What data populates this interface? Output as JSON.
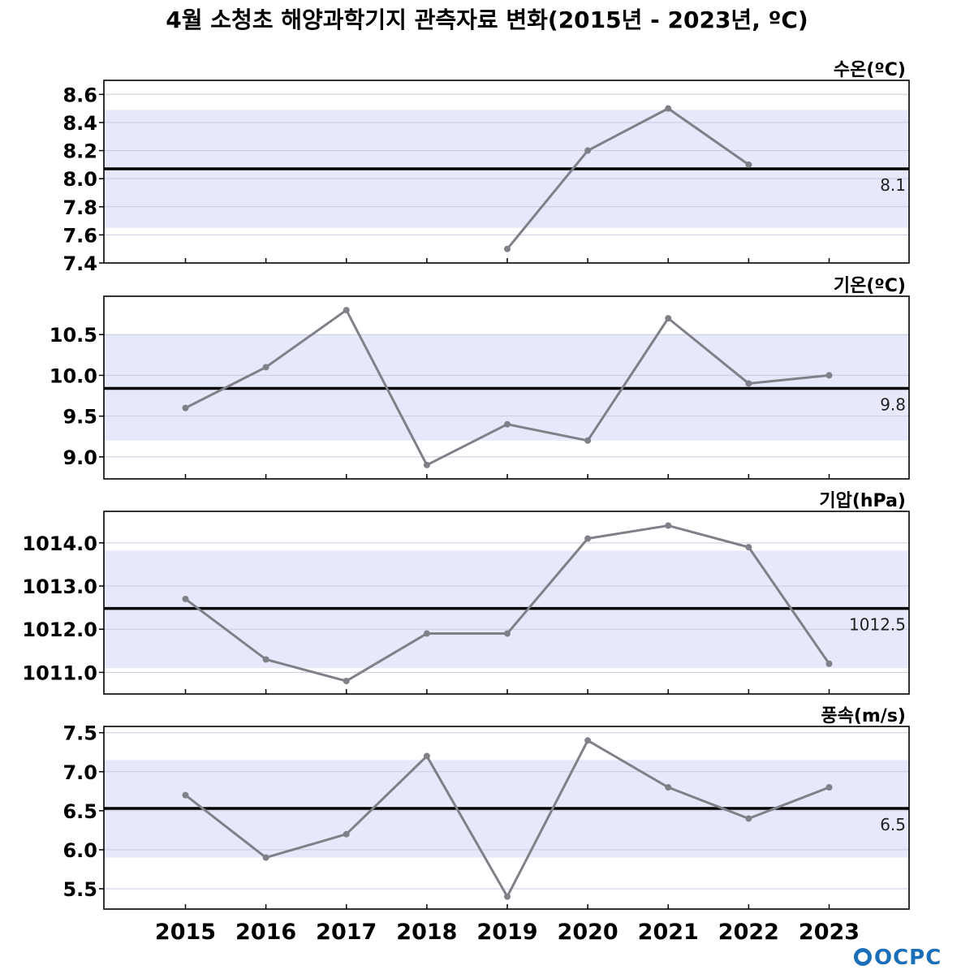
{
  "page": {
    "title": "4월 소청초 해양과학기지 관측자료 변화(2015년 - 2023년, ºC)",
    "logo_text": "OCPC"
  },
  "colors": {
    "band": "#e6e9fb",
    "grid": "#c8cbdc",
    "series_line": "#808088",
    "mean_line": "#000000",
    "frame": "#000000",
    "logo": "#1a6fb8"
  },
  "chart_data": [
    {
      "type": "line",
      "label": "수온(ºC)",
      "x": [
        "2015",
        "2016",
        "2017",
        "2018",
        "2019",
        "2020",
        "2021",
        "2022",
        "2023"
      ],
      "values": [
        null,
        null,
        null,
        null,
        7.5,
        8.2,
        8.5,
        8.1,
        null
      ],
      "mean": 8.07,
      "mean_label": "8.1",
      "band": [
        7.65,
        8.49
      ],
      "ylim": [
        7.4,
        8.7
      ],
      "yticks": [
        7.4,
        7.6,
        7.8,
        8.0,
        8.2,
        8.4,
        8.6
      ],
      "ytick_labels": [
        "7.4",
        "7.6",
        "7.8",
        "8.0",
        "8.2",
        "8.4",
        "8.6"
      ],
      "show_xticks": false
    },
    {
      "type": "line",
      "label": "기온(ºC)",
      "x": [
        "2015",
        "2016",
        "2017",
        "2018",
        "2019",
        "2020",
        "2021",
        "2022",
        "2023"
      ],
      "values": [
        9.6,
        10.1,
        10.8,
        8.9,
        9.4,
        9.2,
        10.7,
        9.9,
        10.0
      ],
      "mean": 9.84,
      "mean_label": "9.8",
      "band": [
        9.2,
        10.5
      ],
      "ylim": [
        8.73,
        10.97
      ],
      "yticks": [
        9.0,
        9.5,
        10.0,
        10.5
      ],
      "ytick_labels": [
        "9.0",
        "9.5",
        "10.0",
        "10.5"
      ],
      "show_xticks": false
    },
    {
      "type": "line",
      "label": "기압(hPa)",
      "x": [
        "2015",
        "2016",
        "2017",
        "2018",
        "2019",
        "2020",
        "2021",
        "2022",
        "2023"
      ],
      "values": [
        1012.7,
        1011.3,
        1010.8,
        1011.9,
        1011.9,
        1014.1,
        1014.4,
        1013.9,
        1011.2
      ],
      "mean": 1012.48,
      "mean_label": "1012.5",
      "band": [
        1011.1,
        1013.82
      ],
      "ylim": [
        1010.5,
        1014.73
      ],
      "yticks": [
        1011.0,
        1012.0,
        1013.0,
        1014.0
      ],
      "ytick_labels": [
        "1011.0",
        "1012.0",
        "1013.0",
        "1014.0"
      ],
      "show_xticks": false
    },
    {
      "type": "line",
      "label": "풍속(m/s)",
      "x": [
        "2015",
        "2016",
        "2017",
        "2018",
        "2019",
        "2020",
        "2021",
        "2022",
        "2023"
      ],
      "values": [
        6.7,
        5.9,
        6.2,
        7.2,
        5.4,
        7.4,
        6.8,
        6.4,
        6.8
      ],
      "mean": 6.53,
      "mean_label": "6.5",
      "band": [
        5.9,
        7.15
      ],
      "ylim": [
        5.24,
        7.58
      ],
      "yticks": [
        5.5,
        6.0,
        6.5,
        7.0,
        7.5
      ],
      "ytick_labels": [
        "5.5",
        "6.0",
        "6.5",
        "7.0",
        "7.5"
      ],
      "show_xticks": true
    }
  ]
}
